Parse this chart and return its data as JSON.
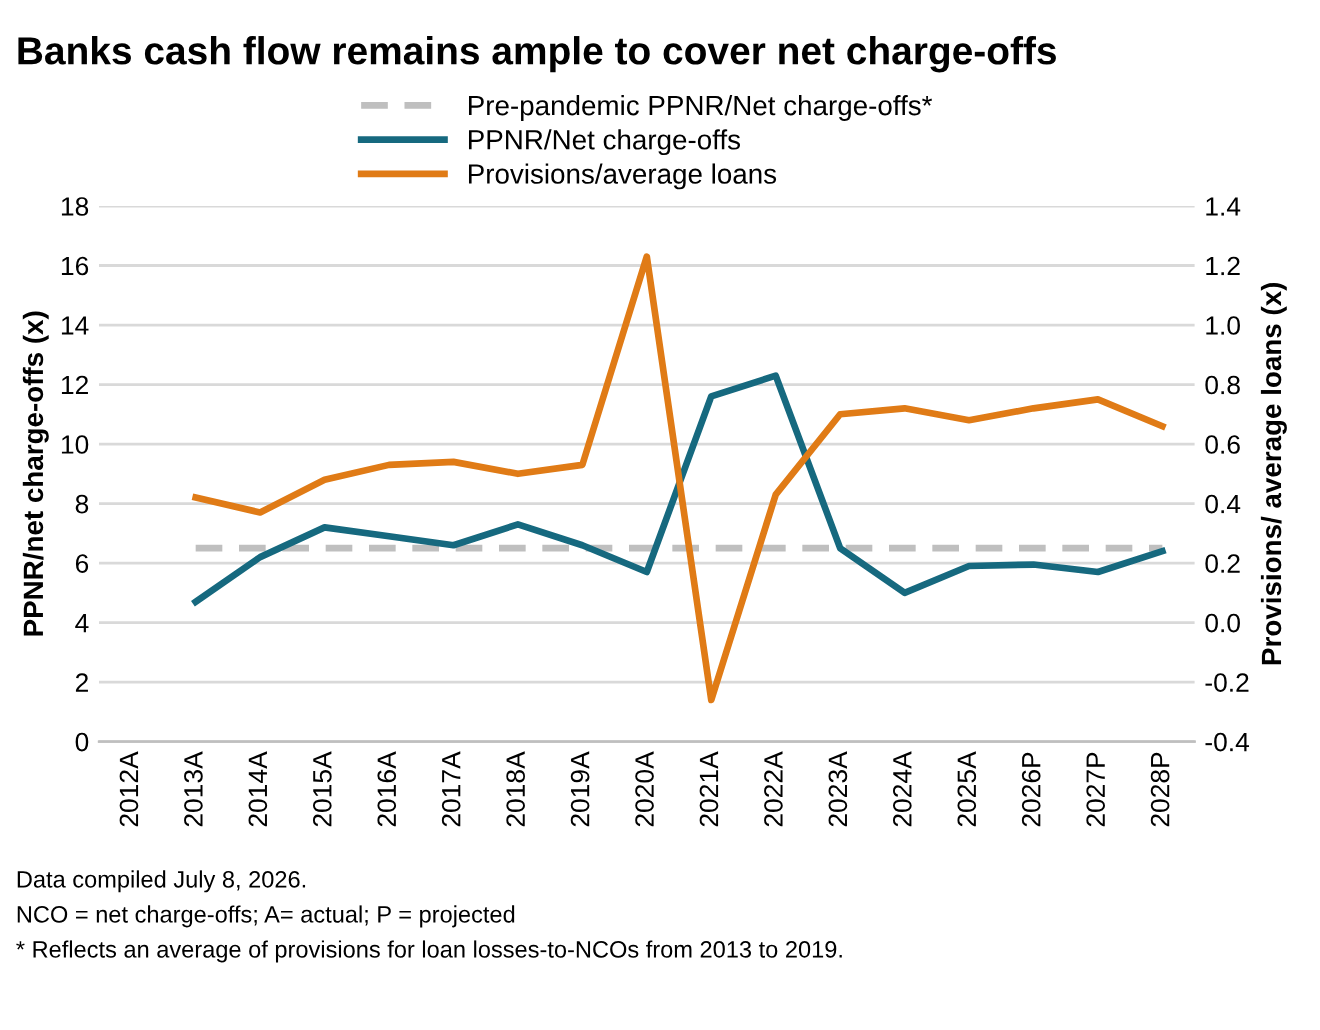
{
  "chart_data": {
    "type": "line",
    "title": "Banks cash flow remains ample to cover net charge-offs",
    "categories": [
      "2012A",
      "2013A",
      "2014A",
      "2015A",
      "2016A",
      "2017A",
      "2018A",
      "2019A",
      "2020A",
      "2021A",
      "2022A",
      "2023A",
      "2024A",
      "2025A",
      "2026P",
      "2027P",
      "2028P"
    ],
    "series": [
      {
        "name": "Pre-pandemic PPNR/Net charge-offs*",
        "color": "#bfbfbf",
        "line_style": "dashed",
        "values": [
          null,
          6.5,
          6.5,
          6.5,
          6.5,
          6.5,
          6.5,
          6.5,
          6.5,
          6.5,
          6.5,
          6.5,
          6.5,
          6.5,
          6.5,
          6.5,
          6.5
        ]
      },
      {
        "name": "PPNR/Net charge-offs",
        "color": "#16697f",
        "line_style": "solid",
        "values": [
          null,
          4.7,
          6.2,
          7.2,
          6.9,
          6.6,
          7.3,
          6.6,
          5.7,
          11.6,
          12.3,
          6.5,
          5.0,
          5.9,
          5.95,
          5.7,
          6.4
        ]
      },
      {
        "name": "Provisions/average loans",
        "color": "#e07b16",
        "line_style": "solid",
        "axis": "y2",
        "values": [
          null,
          0.42,
          0.37,
          0.48,
          0.53,
          0.54,
          0.5,
          0.53,
          1.23,
          -0.26,
          0.43,
          0.7,
          0.72,
          0.68,
          0.72,
          0.75,
          0.66
        ]
      }
    ],
    "ylabel": "PPNR/net charge-offs (x)",
    "y2label": "Provisions/ average loans (x)",
    "ylim": [
      0,
      18
    ],
    "yticks": [
      0,
      2,
      4,
      6,
      8,
      10,
      12,
      14,
      16,
      18
    ],
    "y2lim": [
      -0.4,
      1.4
    ],
    "y2ticks": [
      {
        "value": -0.4,
        "label": "-0.4"
      },
      {
        "value": -0.2,
        "label": "-0.2"
      },
      {
        "value": 0.0,
        "label": "0.0"
      },
      {
        "value": 0.2,
        "label": "0.2"
      },
      {
        "value": 0.4,
        "label": "0.4"
      },
      {
        "value": 0.6,
        "label": "0.6"
      },
      {
        "value": 0.8,
        "label": "0.8"
      },
      {
        "value": 1.0,
        "label": "1.0"
      },
      {
        "value": 1.2,
        "label": "1.2"
      },
      {
        "value": 1.4,
        "label": "1.4"
      }
    ],
    "grid": "y",
    "legend": "top",
    "marker": "none",
    "annotations": [
      "Data compiled July 8, 2026.",
      "NCO = net charge-offs; A= actual; P = projected",
      "* Reflects an average of provisions for loan losses-to-NCOs from 2013 to 2019."
    ]
  }
}
